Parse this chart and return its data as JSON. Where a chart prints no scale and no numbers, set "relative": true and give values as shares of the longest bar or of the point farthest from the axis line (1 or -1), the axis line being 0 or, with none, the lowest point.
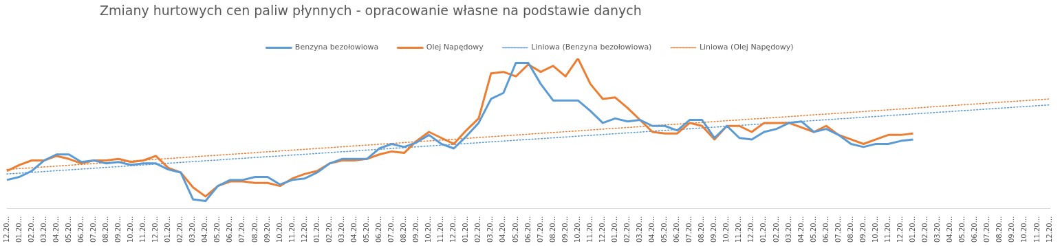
{
  "chart_data": {
    "type": "line",
    "title": "Zmiany hurtowych cen paliw płynnych - opracowanie własne na podstawie danych",
    "relative": true,
    "legend": "top",
    "grid": false,
    "marker": "none",
    "categories": [
      "12.20…",
      "01.20…",
      "02.20…",
      "03.20…",
      "04.20…",
      "05.20…",
      "06.20…",
      "07.20…",
      "08.20…",
      "09.20…",
      "10.20…",
      "11.20…",
      "12.20…",
      "01.20…",
      "02.20…",
      "03.20…",
      "04.20…",
      "05.20…",
      "06.20…",
      "07.20…",
      "08.20…",
      "09.20…",
      "10.20…",
      "11.20…",
      "12.20…",
      "01.20…",
      "02.20…",
      "03.20…",
      "04.20…",
      "05.20…",
      "06.20…",
      "07.20…",
      "08.20…",
      "09.20…",
      "10.20…",
      "11.20…",
      "12.20…",
      "01.20…",
      "02.20…",
      "03.20…",
      "04.20…",
      "05.20…",
      "06.20…",
      "07.20…",
      "08.20…",
      "09.20…",
      "10.20…",
      "11.20…",
      "12.20…",
      "01.20…",
      "02.20…",
      "03.20…",
      "04.20…",
      "05.20…",
      "06.20…",
      "07.20…",
      "08.20…",
      "09.20…",
      "10.20…",
      "11.20…",
      "12.20…",
      "01.20…",
      "02.20…",
      "03.20…",
      "04.20…",
      "05.20…",
      "06.20…",
      "07.20…",
      "08.20…",
      "09.20…",
      "10.20…",
      "11.20…",
      "12.20…",
      "01.20…",
      "02.20…",
      "03.20…",
      "04.20…",
      "05.20…",
      "06.20…",
      "07.20…",
      "08.20…",
      "09.20…",
      "10.20…",
      "11.20…",
      "12.20…"
    ],
    "series": [
      {
        "name": "Benzyna bezołowiowa",
        "color": "#5b9bd5",
        "line_style": "solid",
        "values": [
          0.19,
          0.21,
          0.25,
          0.32,
          0.36,
          0.36,
          0.31,
          0.32,
          0.3,
          0.31,
          0.29,
          0.3,
          0.3,
          0.26,
          0.24,
          0.06,
          0.05,
          0.15,
          0.19,
          0.19,
          0.21,
          0.21,
          0.16,
          0.19,
          0.2,
          0.24,
          0.3,
          0.33,
          0.33,
          0.33,
          0.4,
          0.43,
          0.41,
          0.44,
          0.49,
          0.43,
          0.4,
          0.48,
          0.57,
          0.73,
          0.77,
          0.97,
          0.97,
          0.83,
          0.72,
          0.72,
          0.72,
          0.65,
          0.57,
          0.6,
          0.58,
          0.59,
          0.55,
          0.55,
          0.52,
          0.59,
          0.59,
          0.47,
          0.55,
          0.47,
          0.46,
          0.51,
          0.53,
          0.57,
          0.58,
          0.51,
          0.53,
          0.49,
          0.43,
          0.41,
          0.43,
          0.43,
          0.45,
          0.46,
          null,
          null,
          null,
          null,
          null,
          null,
          null,
          null,
          null,
          null,
          null
        ]
      },
      {
        "name": "Olej Napędowy",
        "color": "#ed7d31",
        "line_style": "solid",
        "values": [
          0.25,
          0.29,
          0.32,
          0.32,
          0.35,
          0.33,
          0.3,
          0.32,
          0.32,
          0.33,
          0.31,
          0.32,
          0.35,
          0.27,
          0.24,
          0.14,
          0.08,
          0.15,
          0.18,
          0.18,
          0.17,
          0.17,
          0.15,
          0.2,
          0.23,
          0.25,
          0.3,
          0.32,
          0.32,
          0.33,
          0.36,
          0.38,
          0.37,
          0.45,
          0.51,
          0.47,
          0.43,
          0.52,
          0.6,
          0.9,
          0.91,
          0.88,
          0.96,
          0.91,
          0.95,
          0.88,
          1,
          0.83,
          0.73,
          0.74,
          0.67,
          0.59,
          0.51,
          0.5,
          0.5,
          0.57,
          0.55,
          0.46,
          0.55,
          0.55,
          0.51,
          0.57,
          0.57,
          0.57,
          0.54,
          0.51,
          0.55,
          0.49,
          0.46,
          0.43,
          0.46,
          0.49,
          0.49,
          0.5,
          null,
          null,
          null,
          null,
          null,
          null,
          null,
          null,
          null,
          null,
          null
        ]
      },
      {
        "name": "Liniowa (Benzyna bezołowiowa)",
        "color": "#5b9bd5",
        "line_style": "dotted",
        "values": [
          0.23,
          0.235,
          0.241,
          0.246,
          0.252,
          0.257,
          0.263,
          0.268,
          0.274,
          0.279,
          0.285,
          0.29,
          0.296,
          0.301,
          0.307,
          0.312,
          0.318,
          0.323,
          0.329,
          0.334,
          0.34,
          0.345,
          0.35,
          0.356,
          0.361,
          0.367,
          0.372,
          0.378,
          0.383,
          0.389,
          0.394,
          0.4,
          0.405,
          0.411,
          0.416,
          0.422,
          0.427,
          0.433,
          0.438,
          0.444,
          0.449,
          0.455,
          0.46,
          0.465,
          0.471,
          0.476,
          0.482,
          0.487,
          0.493,
          0.498,
          0.504,
          0.509,
          0.515,
          0.52,
          0.526,
          0.531,
          0.537,
          0.542,
          0.548,
          0.553,
          0.559,
          0.564,
          0.57,
          0.575,
          0.58,
          0.586,
          0.591,
          0.597,
          0.602,
          0.608,
          0.613,
          0.619,
          0.624,
          0.63,
          0.635,
          0.641,
          0.646,
          0.652,
          0.657,
          0.663,
          0.668,
          0.674,
          0.679,
          0.685,
          0.69
        ]
      },
      {
        "name": "Liniowa (Olej Napędowy)",
        "color": "#ed7d31",
        "line_style": "dotted",
        "values": [
          0.26,
          0.266,
          0.271,
          0.277,
          0.282,
          0.288,
          0.294,
          0.299,
          0.305,
          0.31,
          0.316,
          0.322,
          0.327,
          0.333,
          0.338,
          0.344,
          0.35,
          0.355,
          0.361,
          0.366,
          0.372,
          0.378,
          0.383,
          0.389,
          0.394,
          0.4,
          0.405,
          0.411,
          0.417,
          0.422,
          0.428,
          0.433,
          0.439,
          0.445,
          0.45,
          0.456,
          0.461,
          0.467,
          0.473,
          0.478,
          0.484,
          0.489,
          0.495,
          0.501,
          0.506,
          0.512,
          0.517,
          0.523,
          0.529,
          0.534,
          0.54,
          0.545,
          0.551,
          0.557,
          0.562,
          0.568,
          0.573,
          0.579,
          0.585,
          0.59,
          0.596,
          0.601,
          0.607,
          0.612,
          0.618,
          0.624,
          0.629,
          0.635,
          0.64,
          0.646,
          0.652,
          0.657,
          0.663,
          0.668,
          0.674,
          0.68,
          0.685,
          0.691,
          0.696,
          0.702,
          0.708,
          0.713,
          0.719,
          0.724,
          0.73
        ]
      }
    ]
  }
}
